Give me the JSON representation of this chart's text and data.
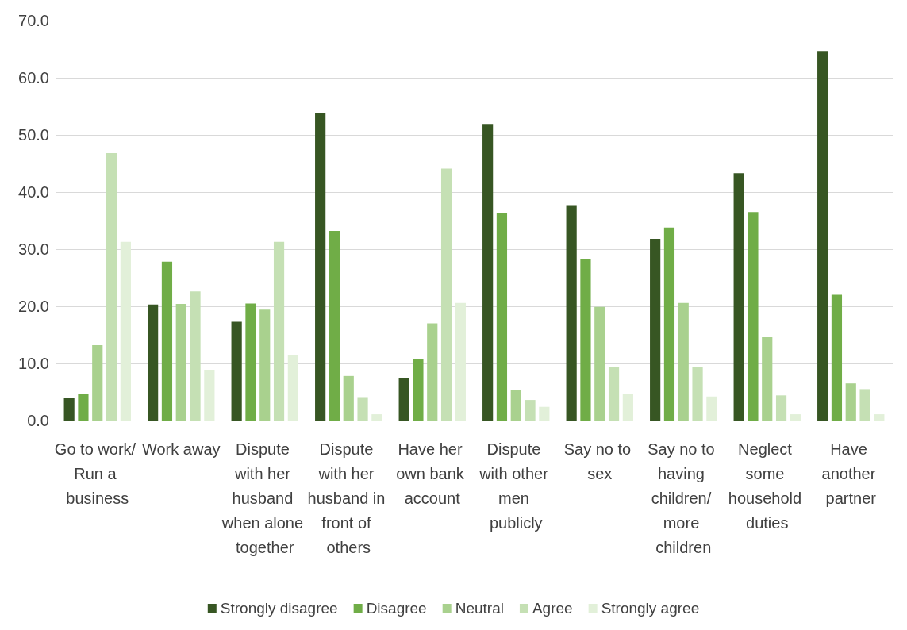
{
  "chart_data": {
    "type": "bar",
    "categories": [
      "Go to work/ Run a business",
      "Work away",
      "Dispute with her husband when alone together",
      "Dispute with her husband in front of others",
      "Have her own bank account",
      "Dispute with other men publicly",
      "Say no to sex",
      "Say no to having children/ more children",
      "Neglect some household duties",
      "Have another partner"
    ],
    "series": [
      {
        "name": "Strongly disagree",
        "color": "#375623",
        "values": [
          4.0,
          20.3,
          17.3,
          53.8,
          7.5,
          51.9,
          37.7,
          31.8,
          43.3,
          64.7
        ]
      },
      {
        "name": "Disagree",
        "color": "#70ad47",
        "values": [
          4.6,
          27.8,
          20.5,
          33.2,
          10.7,
          36.3,
          28.2,
          33.8,
          36.5,
          22.0
        ]
      },
      {
        "name": "Neutral",
        "color": "#a9d18e",
        "values": [
          13.2,
          20.4,
          19.4,
          7.8,
          17.0,
          5.4,
          19.9,
          20.6,
          14.6,
          6.5
        ]
      },
      {
        "name": "Agree",
        "color": "#c5e0b4",
        "values": [
          46.8,
          22.6,
          31.3,
          4.1,
          44.1,
          3.6,
          9.4,
          9.4,
          4.4,
          5.5
        ]
      },
      {
        "name": "Strongly agree",
        "color": "#e2f0d9",
        "values": [
          31.3,
          8.9,
          11.5,
          1.1,
          20.6,
          2.4,
          4.6,
          4.2,
          1.1,
          1.1
        ]
      }
    ],
    "ylim": [
      0,
      70
    ],
    "yticks": [
      {
        "value": 0,
        "label": "0.0"
      },
      {
        "value": 10,
        "label": "10.0"
      },
      {
        "value": 20,
        "label": "20.0"
      },
      {
        "value": 30,
        "label": "30.0"
      },
      {
        "value": 40,
        "label": "40.0"
      },
      {
        "value": 50,
        "label": "50.0"
      },
      {
        "value": 60,
        "label": "60.0"
      },
      {
        "value": 70,
        "label": "70.0"
      }
    ],
    "grid": "y",
    "legend": "bottom"
  }
}
